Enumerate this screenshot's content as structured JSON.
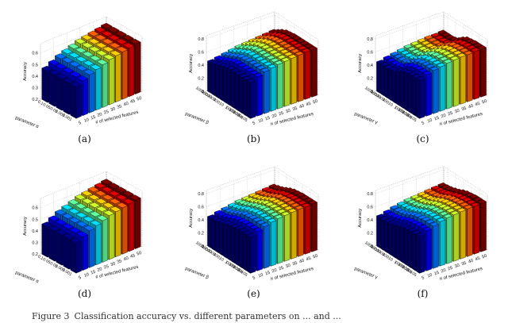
{
  "caption": {
    "prefix": "Figure 3",
    "text": "Classification accuracy vs. different parameters on ... and ..."
  },
  "colors": {
    "colormap": [
      "#00008f",
      "#0000ff",
      "#0070ff",
      "#00e0ff",
      "#60ffa0",
      "#d0ff30",
      "#ffd000",
      "#ff6000",
      "#e00000",
      "#800000"
    ]
  },
  "chart_data": [
    {
      "id": "a",
      "panel_label": "(a)",
      "type": "bar3d",
      "zlabel": "Accuracy",
      "xlabel": "# of selected features",
      "ylabel": "parameter α",
      "x": [
        "5",
        "10",
        "15",
        "20",
        "25",
        "30",
        "35",
        "40",
        "45",
        "50"
      ],
      "y": [
        "0.001",
        "0.005",
        "0.01",
        "0.05",
        "0.1"
      ],
      "zticks": [
        "0.2",
        "0.3",
        "0.4",
        "0.5",
        "0.6"
      ],
      "zlim": [
        0.2,
        0.68
      ],
      "values": [
        [
          0.47,
          0.5,
          0.53,
          0.55,
          0.57,
          0.59,
          0.6,
          0.61,
          0.62,
          0.63
        ],
        [
          0.47,
          0.5,
          0.53,
          0.55,
          0.57,
          0.59,
          0.6,
          0.61,
          0.62,
          0.63
        ],
        [
          0.47,
          0.5,
          0.53,
          0.55,
          0.57,
          0.59,
          0.6,
          0.61,
          0.62,
          0.63
        ],
        [
          0.47,
          0.5,
          0.53,
          0.55,
          0.57,
          0.59,
          0.6,
          0.61,
          0.62,
          0.63
        ],
        [
          0.47,
          0.5,
          0.53,
          0.55,
          0.57,
          0.59,
          0.6,
          0.61,
          0.62,
          0.63
        ]
      ]
    },
    {
      "id": "b",
      "panel_label": "(b)",
      "type": "bar3d",
      "zlabel": "Accuracy",
      "xlabel": "# of selected features",
      "ylabel": "parameter β",
      "x": [
        "5",
        "10",
        "15",
        "20",
        "25",
        "30",
        "35",
        "40",
        "45",
        "50"
      ],
      "y": [
        "1e-05",
        "0.0001",
        "0.001",
        "0.01",
        "0.1",
        "1",
        "10",
        "100",
        "1000",
        "10000",
        "100000"
      ],
      "zticks": [
        "0",
        "0.2",
        "0.4",
        "0.6",
        "0.8"
      ],
      "zlim": [
        0,
        0.85
      ],
      "values": [
        [
          0.55,
          0.6,
          0.64,
          0.66,
          0.68,
          0.69,
          0.7,
          0.71,
          0.72,
          0.72
        ],
        [
          0.55,
          0.6,
          0.64,
          0.66,
          0.68,
          0.69,
          0.7,
          0.71,
          0.72,
          0.72
        ],
        [
          0.55,
          0.6,
          0.64,
          0.66,
          0.68,
          0.69,
          0.7,
          0.71,
          0.72,
          0.72
        ],
        [
          0.55,
          0.6,
          0.64,
          0.66,
          0.68,
          0.69,
          0.7,
          0.71,
          0.72,
          0.72
        ],
        [
          0.55,
          0.6,
          0.64,
          0.66,
          0.68,
          0.69,
          0.7,
          0.71,
          0.72,
          0.72
        ],
        [
          0.55,
          0.6,
          0.63,
          0.66,
          0.68,
          0.69,
          0.7,
          0.71,
          0.72,
          0.72
        ],
        [
          0.54,
          0.59,
          0.62,
          0.65,
          0.67,
          0.68,
          0.69,
          0.7,
          0.71,
          0.71
        ],
        [
          0.52,
          0.56,
          0.59,
          0.62,
          0.64,
          0.66,
          0.67,
          0.68,
          0.69,
          0.7
        ],
        [
          0.5,
          0.53,
          0.56,
          0.59,
          0.61,
          0.63,
          0.64,
          0.65,
          0.66,
          0.67
        ],
        [
          0.48,
          0.5,
          0.53,
          0.55,
          0.57,
          0.59,
          0.6,
          0.61,
          0.62,
          0.63
        ],
        [
          0.46,
          0.48,
          0.5,
          0.52,
          0.54,
          0.55,
          0.56,
          0.57,
          0.58,
          0.59
        ]
      ]
    },
    {
      "id": "c",
      "panel_label": "(c)",
      "type": "bar3d",
      "zlabel": "Accuracy",
      "xlabel": "# of selected features",
      "ylabel": "parameter γ",
      "x": [
        "5",
        "10",
        "15",
        "20",
        "25",
        "30",
        "35",
        "40",
        "45",
        "50"
      ],
      "y": [
        "1e-05",
        "0.0001",
        "0.001",
        "0.01",
        "0.1",
        "1",
        "10",
        "100",
        "1000",
        "10000",
        "100000"
      ],
      "zticks": [
        "0",
        "0.2",
        "0.4",
        "0.6",
        "0.8"
      ],
      "zlim": [
        0,
        0.85
      ],
      "values": [
        [
          0.58,
          0.63,
          0.66,
          0.68,
          0.7,
          0.71,
          0.72,
          0.72,
          0.73,
          0.73
        ],
        [
          0.58,
          0.63,
          0.66,
          0.68,
          0.7,
          0.71,
          0.72,
          0.72,
          0.73,
          0.73
        ],
        [
          0.58,
          0.63,
          0.66,
          0.68,
          0.7,
          0.71,
          0.72,
          0.72,
          0.73,
          0.73
        ],
        [
          0.57,
          0.62,
          0.65,
          0.67,
          0.69,
          0.7,
          0.71,
          0.71,
          0.72,
          0.72
        ],
        [
          0.55,
          0.6,
          0.63,
          0.65,
          0.67,
          0.68,
          0.69,
          0.7,
          0.7,
          0.71
        ],
        [
          0.52,
          0.56,
          0.59,
          0.61,
          0.63,
          0.64,
          0.65,
          0.66,
          0.66,
          0.67
        ],
        [
          0.48,
          0.51,
          0.54,
          0.56,
          0.58,
          0.59,
          0.6,
          0.61,
          0.61,
          0.62
        ],
        [
          0.46,
          0.49,
          0.51,
          0.53,
          0.55,
          0.56,
          0.57,
          0.58,
          0.58,
          0.59
        ],
        [
          0.45,
          0.48,
          0.5,
          0.52,
          0.54,
          0.55,
          0.56,
          0.57,
          0.57,
          0.58
        ],
        [
          0.45,
          0.48,
          0.5,
          0.52,
          0.54,
          0.55,
          0.56,
          0.57,
          0.57,
          0.58
        ],
        [
          0.45,
          0.48,
          0.5,
          0.52,
          0.54,
          0.55,
          0.56,
          0.57,
          0.57,
          0.58
        ]
      ]
    },
    {
      "id": "d",
      "panel_label": "(d)",
      "type": "bar3d",
      "zlabel": "Accuracy",
      "xlabel": "# of selected features",
      "ylabel": "parameter α",
      "x": [
        "5",
        "10",
        "15",
        "20",
        "25",
        "30",
        "35",
        "40",
        "45",
        "50"
      ],
      "y": [
        "0.001",
        "0.005",
        "0.01",
        "0.05",
        "0.1"
      ],
      "zticks": [
        "0.2",
        "0.3",
        "0.4",
        "0.5",
        "0.6"
      ],
      "zlim": [
        0.2,
        0.68
      ],
      "values": [
        [
          0.46,
          0.49,
          0.52,
          0.54,
          0.56,
          0.58,
          0.59,
          0.6,
          0.61,
          0.62
        ],
        [
          0.46,
          0.49,
          0.52,
          0.54,
          0.56,
          0.58,
          0.59,
          0.6,
          0.61,
          0.62
        ],
        [
          0.46,
          0.49,
          0.52,
          0.54,
          0.56,
          0.58,
          0.59,
          0.6,
          0.61,
          0.62
        ],
        [
          0.46,
          0.49,
          0.52,
          0.54,
          0.56,
          0.58,
          0.59,
          0.6,
          0.61,
          0.62
        ],
        [
          0.46,
          0.49,
          0.52,
          0.54,
          0.56,
          0.58,
          0.59,
          0.6,
          0.61,
          0.62
        ]
      ]
    },
    {
      "id": "e",
      "panel_label": "(e)",
      "type": "bar3d",
      "zlabel": "Accuracy",
      "xlabel": "# of selected features",
      "ylabel": "parameter β",
      "x": [
        "5",
        "10",
        "15",
        "20",
        "25",
        "30",
        "35",
        "40",
        "45",
        "50"
      ],
      "y": [
        "1e-05",
        "0.0001",
        "0.001",
        "0.01",
        "0.1",
        "1",
        "10",
        "100",
        "1000",
        "10000",
        "100000"
      ],
      "zticks": [
        "0",
        "0.2",
        "0.4",
        "0.6",
        "0.8"
      ],
      "zlim": [
        0,
        0.85
      ],
      "values": [
        [
          0.55,
          0.6,
          0.64,
          0.67,
          0.69,
          0.7,
          0.71,
          0.72,
          0.72,
          0.73
        ],
        [
          0.55,
          0.6,
          0.64,
          0.67,
          0.69,
          0.7,
          0.71,
          0.72,
          0.72,
          0.73
        ],
        [
          0.55,
          0.6,
          0.64,
          0.67,
          0.69,
          0.7,
          0.71,
          0.72,
          0.72,
          0.73
        ],
        [
          0.55,
          0.6,
          0.64,
          0.67,
          0.69,
          0.7,
          0.71,
          0.72,
          0.72,
          0.73
        ],
        [
          0.54,
          0.59,
          0.63,
          0.66,
          0.68,
          0.69,
          0.7,
          0.71,
          0.71,
          0.72
        ],
        [
          0.53,
          0.58,
          0.62,
          0.64,
          0.66,
          0.68,
          0.69,
          0.7,
          0.7,
          0.71
        ],
        [
          0.51,
          0.56,
          0.59,
          0.62,
          0.64,
          0.65,
          0.66,
          0.67,
          0.68,
          0.69
        ],
        [
          0.49,
          0.53,
          0.56,
          0.59,
          0.61,
          0.62,
          0.63,
          0.64,
          0.65,
          0.66
        ],
        [
          0.47,
          0.5,
          0.53,
          0.56,
          0.58,
          0.59,
          0.6,
          0.61,
          0.62,
          0.63
        ],
        [
          0.46,
          0.49,
          0.51,
          0.54,
          0.56,
          0.57,
          0.58,
          0.59,
          0.6,
          0.61
        ],
        [
          0.45,
          0.48,
          0.5,
          0.52,
          0.54,
          0.55,
          0.56,
          0.57,
          0.58,
          0.59
        ]
      ]
    },
    {
      "id": "f",
      "panel_label": "(f)",
      "type": "bar3d",
      "zlabel": "Accuracy",
      "xlabel": "# of selected features",
      "ylabel": "parameter γ",
      "x": [
        "5",
        "10",
        "15",
        "20",
        "25",
        "30",
        "35",
        "40",
        "45",
        "50"
      ],
      "y": [
        "1e-05",
        "0.0001",
        "0.001",
        "0.01",
        "0.1",
        "1",
        "10",
        "100",
        "1000",
        "10000",
        "100000"
      ],
      "zticks": [
        "0",
        "0.2",
        "0.4",
        "0.6",
        "0.8"
      ],
      "zlim": [
        0,
        0.85
      ],
      "values": [
        [
          0.56,
          0.61,
          0.65,
          0.68,
          0.7,
          0.71,
          0.72,
          0.73,
          0.73,
          0.74
        ],
        [
          0.56,
          0.61,
          0.65,
          0.68,
          0.7,
          0.71,
          0.72,
          0.73,
          0.73,
          0.74
        ],
        [
          0.56,
          0.61,
          0.65,
          0.68,
          0.7,
          0.71,
          0.72,
          0.73,
          0.73,
          0.74
        ],
        [
          0.55,
          0.6,
          0.64,
          0.67,
          0.69,
          0.7,
          0.71,
          0.72,
          0.72,
          0.73
        ],
        [
          0.54,
          0.59,
          0.63,
          0.66,
          0.68,
          0.69,
          0.7,
          0.71,
          0.71,
          0.72
        ],
        [
          0.52,
          0.57,
          0.61,
          0.63,
          0.65,
          0.67,
          0.68,
          0.69,
          0.69,
          0.7
        ],
        [
          0.5,
          0.54,
          0.58,
          0.6,
          0.62,
          0.64,
          0.65,
          0.66,
          0.66,
          0.67
        ],
        [
          0.48,
          0.52,
          0.55,
          0.58,
          0.6,
          0.61,
          0.62,
          0.63,
          0.64,
          0.65
        ],
        [
          0.47,
          0.5,
          0.53,
          0.56,
          0.58,
          0.59,
          0.6,
          0.61,
          0.62,
          0.63
        ],
        [
          0.46,
          0.49,
          0.52,
          0.55,
          0.57,
          0.58,
          0.59,
          0.6,
          0.61,
          0.62
        ],
        [
          0.46,
          0.49,
          0.52,
          0.54,
          0.56,
          0.57,
          0.58,
          0.59,
          0.6,
          0.61
        ]
      ]
    }
  ]
}
